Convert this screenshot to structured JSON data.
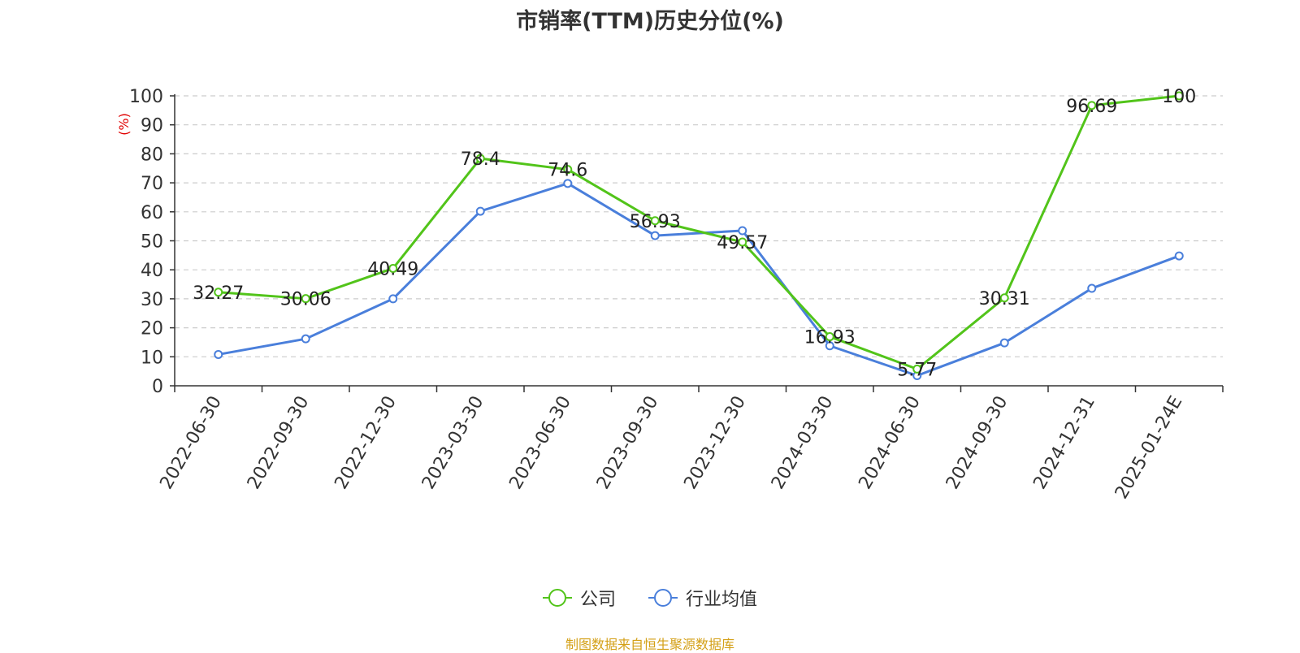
{
  "chart_data": {
    "type": "line",
    "title": "市销率(TTM)历史分位(%)",
    "ylabel": "(%)",
    "ylim": [
      0,
      100
    ],
    "yticks": [
      0,
      10,
      20,
      30,
      40,
      50,
      60,
      70,
      80,
      90,
      100
    ],
    "grid": true,
    "legend_position": "bottom",
    "categories": [
      "2022-06-30",
      "2022-09-30",
      "2022-12-30",
      "2023-03-30",
      "2023-06-30",
      "2023-09-30",
      "2023-12-30",
      "2024-03-30",
      "2024-06-30",
      "2024-09-30",
      "2024-12-31",
      "2025-01-24E"
    ],
    "series": [
      {
        "name": "公司",
        "color": "#52c41a",
        "values": [
          32.27,
          30.06,
          40.49,
          78.4,
          74.6,
          56.93,
          49.57,
          16.93,
          5.77,
          30.31,
          96.69,
          100
        ],
        "labels": [
          "32.27",
          "30.06",
          "40.49",
          "78.4",
          "74.6",
          "56.93",
          "49.57",
          "16.93",
          "5.77",
          "30.31",
          "96.69",
          "100"
        ]
      },
      {
        "name": "行业均值",
        "color": "#4a7fdb",
        "values": [
          10.8,
          16.2,
          30.0,
          60.2,
          69.8,
          51.8,
          53.5,
          13.8,
          3.5,
          14.8,
          33.6,
          44.8
        ]
      }
    ]
  },
  "source": "制图数据来自恒生聚源数据库"
}
